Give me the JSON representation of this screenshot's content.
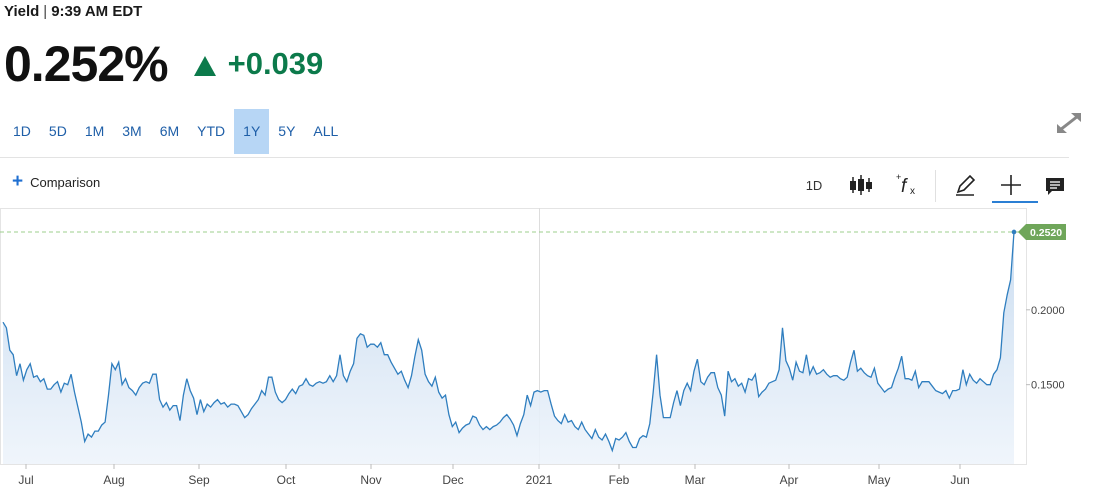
{
  "header": {
    "label": "Yield",
    "separator": "|",
    "time": "9:39 AM EDT",
    "price": "0.252%",
    "change": "+0.039",
    "change_color": "#0c7a4b",
    "change_direction_icon": "up-triangle-icon"
  },
  "ranges": [
    {
      "label": "1D",
      "active": false
    },
    {
      "label": "5D",
      "active": false
    },
    {
      "label": "1M",
      "active": false
    },
    {
      "label": "3M",
      "active": false
    },
    {
      "label": "6M",
      "active": false
    },
    {
      "label": "YTD",
      "active": false
    },
    {
      "label": "1Y",
      "active": true
    },
    {
      "label": "5Y",
      "active": false
    },
    {
      "label": "ALL",
      "active": false
    }
  ],
  "toolbar": {
    "comparison_label": "Comparison",
    "interval_label": "1D",
    "icons": [
      "candlestick-icon",
      "function-icon",
      "pencil-icon",
      "crosshair-icon",
      "comment-icon"
    ],
    "expand_icon": "expand-icon"
  },
  "chart_data": {
    "type": "area",
    "title": "",
    "xlabel": "",
    "ylabel": "",
    "x_ticks": [
      "Jul",
      "Aug",
      "Sep",
      "Oct",
      "Nov",
      "Dec",
      "2021",
      "Feb",
      "Mar",
      "Apr",
      "May",
      "Jun"
    ],
    "y_ticks": [
      "0.2000",
      "0.1500"
    ],
    "ylim": [
      0.097,
      0.268
    ],
    "last_value_label": "0.2520",
    "last_value": 0.252,
    "line_color": "#2f7ebf",
    "fill_color": "#dde9f5",
    "label_color": "#6fa65a",
    "grid": false,
    "series": [
      {
        "values": [
          0.1917,
          0.188,
          0.173,
          0.17,
          0.156,
          0.164,
          0.153,
          0.16,
          0.164,
          0.155,
          0.156,
          0.152,
          0.154,
          0.147,
          0.147,
          0.15,
          0.152,
          0.145,
          0.151,
          0.15,
          0.157,
          0.145,
          0.135,
          0.125,
          0.112,
          0.117,
          0.115,
          0.119,
          0.119,
          0.123,
          0.125,
          0.143,
          0.164,
          0.16,
          0.165,
          0.15,
          0.154,
          0.148,
          0.146,
          0.143,
          0.148,
          0.151,
          0.152,
          0.151,
          0.157,
          0.157,
          0.14,
          0.135,
          0.138,
          0.133,
          0.136,
          0.136,
          0.126,
          0.143,
          0.154,
          0.146,
          0.141,
          0.13,
          0.14,
          0.132,
          0.137,
          0.135,
          0.138,
          0.14,
          0.137,
          0.138,
          0.135,
          0.137,
          0.137,
          0.136,
          0.132,
          0.128,
          0.13,
          0.134,
          0.137,
          0.14,
          0.146,
          0.143,
          0.155,
          0.155,
          0.145,
          0.14,
          0.138,
          0.14,
          0.144,
          0.147,
          0.144,
          0.149,
          0.15,
          0.154,
          0.15,
          0.149,
          0.151,
          0.152,
          0.151,
          0.152,
          0.156,
          0.152,
          0.156,
          0.17,
          0.156,
          0.152,
          0.159,
          0.164,
          0.181,
          0.184,
          0.183,
          0.175,
          0.177,
          0.177,
          0.175,
          0.178,
          0.17,
          0.17,
          0.165,
          0.161,
          0.157,
          0.159,
          0.153,
          0.148,
          0.156,
          0.169,
          0.18,
          0.173,
          0.157,
          0.152,
          0.149,
          0.155,
          0.145,
          0.141,
          0.143,
          0.13,
          0.122,
          0.125,
          0.118,
          0.121,
          0.123,
          0.124,
          0.129,
          0.128,
          0.123,
          0.12,
          0.122,
          0.12,
          0.122,
          0.123,
          0.125,
          0.128,
          0.13,
          0.127,
          0.123,
          0.116,
          0.124,
          0.13,
          0.143,
          0.136,
          0.145,
          0.146,
          0.145,
          0.146,
          0.146,
          0.137,
          0.129,
          0.126,
          0.124,
          0.13,
          0.125,
          0.126,
          0.122,
          0.12,
          0.125,
          0.12,
          0.117,
          0.114,
          0.12,
          0.115,
          0.113,
          0.117,
          0.112,
          0.106,
          0.114,
          0.113,
          0.115,
          0.118,
          0.112,
          0.108,
          0.108,
          0.114,
          0.116,
          0.115,
          0.124,
          0.145,
          0.17,
          0.143,
          0.128,
          0.128,
          0.128,
          0.138,
          0.146,
          0.136,
          0.146,
          0.151,
          0.146,
          0.159,
          0.167,
          0.152,
          0.15,
          0.155,
          0.158,
          0.158,
          0.148,
          0.143,
          0.129,
          0.159,
          0.152,
          0.154,
          0.149,
          0.151,
          0.145,
          0.154,
          0.153,
          0.157,
          0.142,
          0.145,
          0.147,
          0.151,
          0.152,
          0.153,
          0.16,
          0.188,
          0.166,
          0.161,
          0.153,
          0.165,
          0.159,
          0.158,
          0.17,
          0.157,
          0.162,
          0.157,
          0.158,
          0.16,
          0.157,
          0.155,
          0.156,
          0.156,
          0.154,
          0.153,
          0.155,
          0.165,
          0.173,
          0.159,
          0.161,
          0.158,
          0.156,
          0.155,
          0.161,
          0.151,
          0.148,
          0.145,
          0.147,
          0.148,
          0.155,
          0.161,
          0.169,
          0.154,
          0.154,
          0.153,
          0.159,
          0.148,
          0.152,
          0.152,
          0.152,
          0.149,
          0.146,
          0.145,
          0.144,
          0.146,
          0.141,
          0.146,
          0.146,
          0.147,
          0.16,
          0.15,
          0.157,
          0.153,
          0.151,
          0.154,
          0.152,
          0.15,
          0.15,
          0.157,
          0.16,
          0.168,
          0.198,
          0.21,
          0.22,
          0.252
        ]
      }
    ]
  }
}
